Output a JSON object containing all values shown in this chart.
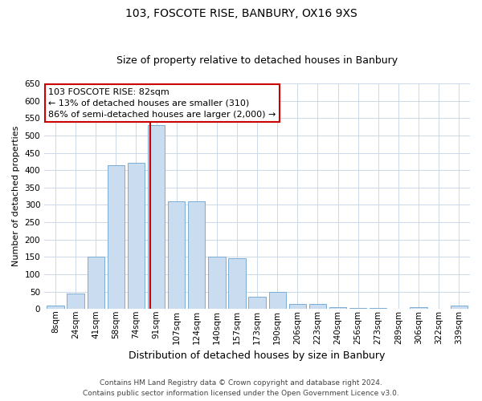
{
  "title": "103, FOSCOTE RISE, BANBURY, OX16 9XS",
  "subtitle": "Size of property relative to detached houses in Banbury",
  "xlabel": "Distribution of detached houses by size in Banbury",
  "ylabel": "Number of detached properties",
  "categories": [
    "8sqm",
    "24sqm",
    "41sqm",
    "58sqm",
    "74sqm",
    "91sqm",
    "107sqm",
    "124sqm",
    "140sqm",
    "157sqm",
    "173sqm",
    "190sqm",
    "206sqm",
    "223sqm",
    "240sqm",
    "256sqm",
    "273sqm",
    "289sqm",
    "306sqm",
    "322sqm",
    "339sqm"
  ],
  "values": [
    10,
    45,
    150,
    415,
    420,
    530,
    310,
    310,
    150,
    145,
    35,
    50,
    15,
    15,
    5,
    2,
    2,
    0,
    5,
    0,
    10
  ],
  "bar_color": "#c9dcf0",
  "bar_edge_color": "#7aadd4",
  "vline_index": 4.72,
  "annotation_text": "103 FOSCOTE RISE: 82sqm\n← 13% of detached houses are smaller (310)\n86% of semi-detached houses are larger (2,000) →",
  "annotation_box_color": "#ffffff",
  "annotation_box_edge": "#cc0000",
  "vline_color": "#cc0000",
  "grid_color": "#ccd8e8",
  "footer_line1": "Contains HM Land Registry data © Crown copyright and database right 2024.",
  "footer_line2": "Contains public sector information licensed under the Open Government Licence v3.0.",
  "ylim": [
    0,
    650
  ],
  "yticks": [
    0,
    50,
    100,
    150,
    200,
    250,
    300,
    350,
    400,
    450,
    500,
    550,
    600,
    650
  ],
  "title_fontsize": 10,
  "subtitle_fontsize": 9,
  "ylabel_fontsize": 8,
  "xlabel_fontsize": 9,
  "tick_fontsize": 7.5,
  "footer_fontsize": 6.5
}
